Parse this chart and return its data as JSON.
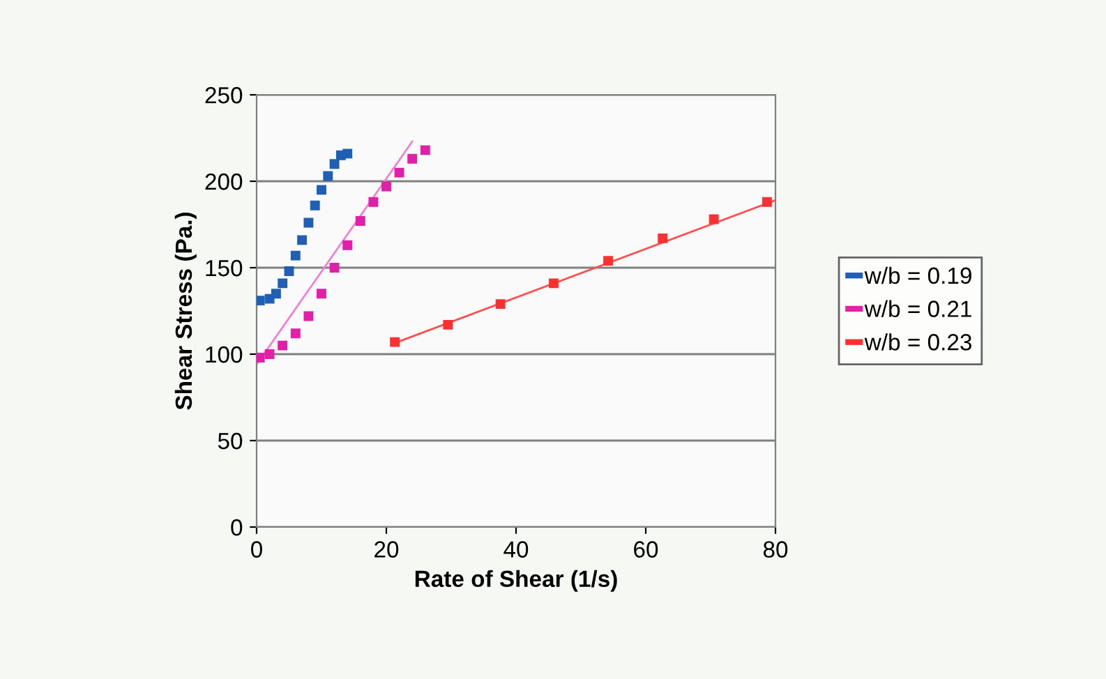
{
  "chart_data": {
    "type": "scatter",
    "xlabel": "Rate of Shear (1/s)",
    "ylabel": "Shear Stress (Pa.)",
    "xlim": [
      0,
      80
    ],
    "xticks": [
      0,
      20,
      40,
      60,
      80
    ],
    "ylim": [
      0,
      250
    ],
    "yticks": [
      0,
      50,
      100,
      150,
      200,
      250
    ],
    "grid": "y",
    "legend": "right",
    "marker": "square",
    "series": [
      {
        "name": "w/b = 0.19",
        "color": "#1f5fb4",
        "x": [
          0.5,
          2,
          3,
          4,
          5,
          6,
          7,
          8,
          9,
          10,
          11,
          12,
          13,
          14
        ],
        "values": [
          131,
          132,
          135,
          141,
          148,
          157,
          166,
          176,
          186,
          195,
          203,
          210,
          215,
          216
        ]
      },
      {
        "name": "w/b = 0.21",
        "color": "#e020a8",
        "x": [
          0.5,
          2,
          4,
          6,
          8,
          10,
          12,
          14,
          16,
          18,
          20,
          22,
          24,
          26
        ],
        "values": [
          98,
          100,
          105,
          112,
          122,
          135,
          150,
          163,
          177,
          188,
          197,
          205,
          213,
          218
        ]
      },
      {
        "name": "w/b = 0.23",
        "color": "#ff3030",
        "x": [
          21.3,
          29.5,
          37.6,
          45.8,
          54.2,
          62.6,
          70.5,
          78.7
        ],
        "values": [
          107,
          117,
          129,
          141,
          154,
          167,
          178,
          188
        ]
      },
      {
        "type": "line",
        "marker": "none",
        "color": "#f080d0",
        "x": [
          0,
          24
        ],
        "values": [
          94,
          223
        ]
      },
      {
        "type": "line",
        "marker": "none",
        "color": "#ff5050",
        "x": [
          21,
          80
        ],
        "values": [
          106,
          189
        ]
      }
    ]
  }
}
